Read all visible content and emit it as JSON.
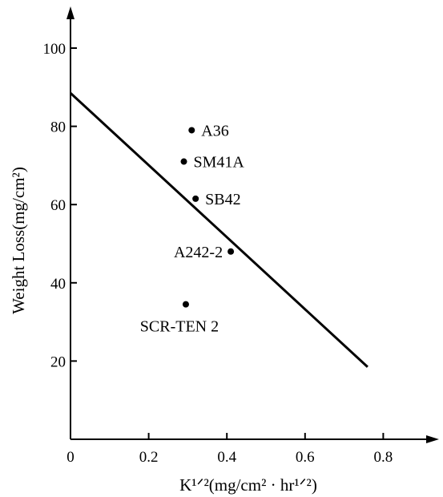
{
  "chart_data": {
    "type": "scatter",
    "title": "",
    "xlabel": "K¹ᐟ²(mg/cm² · hr¹ᐟ²)",
    "ylabel": "Weight Loss(mg/cm²)",
    "xlim": [
      0,
      0.95
    ],
    "ylim": [
      0,
      108
    ],
    "xticks": [
      0,
      0.2,
      0.4,
      0.6,
      0.8
    ],
    "xtick_labels": [
      "0",
      "0.2",
      "0.4",
      "0.6",
      "0.8"
    ],
    "yticks": [
      20,
      40,
      60,
      80,
      100
    ],
    "ytick_labels": [
      "20",
      "40",
      "60",
      "80",
      "100"
    ],
    "grid": false,
    "points": [
      {
        "label": "A36",
        "x": 0.31,
        "y": 79,
        "label_side": "right"
      },
      {
        "label": "SM41A",
        "x": 0.29,
        "y": 71,
        "label_side": "right"
      },
      {
        "label": "SB42",
        "x": 0.32,
        "y": 61.5,
        "label_side": "right"
      },
      {
        "label": "A242-2",
        "x": 0.41,
        "y": 48,
        "label_side": "left"
      },
      {
        "label": "SCR-TEN 2",
        "x": 0.295,
        "y": 34.5,
        "label_side": "below"
      }
    ],
    "fit_line": {
      "x": [
        0,
        0.76
      ],
      "y": [
        88.5,
        18.5
      ]
    }
  }
}
